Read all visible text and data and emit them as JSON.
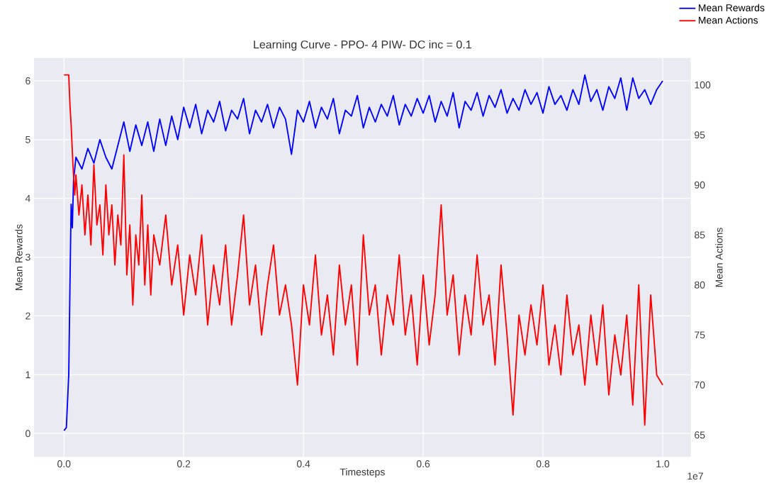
{
  "chart_data": {
    "type": "line",
    "title": "Learning Curve - PPO- 4 PIW- DC inc = 0.1",
    "xlabel": "Timesteps",
    "ylabel": "Mean Rewards",
    "y2label": "Mean Actions",
    "annotations": [
      "1e7"
    ],
    "xlim": [
      -0.05,
      1.047
    ],
    "ylim": [
      -0.4,
      6.39
    ],
    "y2lim": [
      62.8,
      102.7
    ],
    "xticks": [
      {
        "value": 0,
        "label": "0.0"
      },
      {
        "value": 0.2,
        "label": "0.2"
      },
      {
        "value": 0.4,
        "label": "0.4"
      },
      {
        "value": 0.6,
        "label": "0.6"
      },
      {
        "value": 0.8,
        "label": "0.8"
      },
      {
        "value": 1,
        "label": "1.0"
      }
    ],
    "yticks": [
      0,
      1,
      2,
      3,
      4,
      5,
      6
    ],
    "y2ticks": [
      65,
      70,
      75,
      80,
      85,
      90,
      95,
      100
    ],
    "grid": true,
    "legend": "top right",
    "series": [
      {
        "name": "Mean Rewards",
        "color": "#0000ff",
        "x": [
          0,
          0.004,
          0.008,
          0.01,
          0.012,
          0.014,
          0.016,
          0.02,
          0.03,
          0.04,
          0.05,
          0.06,
          0.07,
          0.08,
          0.09,
          0.1,
          0.11,
          0.12,
          0.13,
          0.14,
          0.15,
          0.16,
          0.17,
          0.18,
          0.19,
          0.2,
          0.21,
          0.22,
          0.23,
          0.24,
          0.25,
          0.26,
          0.27,
          0.28,
          0.29,
          0.3,
          0.31,
          0.32,
          0.33,
          0.34,
          0.35,
          0.36,
          0.37,
          0.38,
          0.39,
          0.4,
          0.41,
          0.42,
          0.43,
          0.44,
          0.45,
          0.46,
          0.47,
          0.48,
          0.49,
          0.5,
          0.51,
          0.52,
          0.53,
          0.54,
          0.55,
          0.56,
          0.57,
          0.58,
          0.59,
          0.6,
          0.61,
          0.62,
          0.63,
          0.64,
          0.65,
          0.66,
          0.67,
          0.68,
          0.69,
          0.7,
          0.71,
          0.72,
          0.73,
          0.74,
          0.75,
          0.76,
          0.77,
          0.78,
          0.79,
          0.8,
          0.81,
          0.82,
          0.83,
          0.84,
          0.85,
          0.86,
          0.87,
          0.88,
          0.89,
          0.9,
          0.91,
          0.92,
          0.93,
          0.94,
          0.95,
          0.96,
          0.97,
          0.98,
          0.99,
          1.0
        ],
        "values": [
          0.05,
          0.1,
          1.0,
          2.5,
          3.9,
          3.5,
          4.3,
          4.7,
          4.5,
          4.85,
          4.6,
          5.0,
          4.7,
          4.5,
          4.9,
          5.3,
          4.8,
          5.25,
          4.9,
          5.3,
          4.8,
          5.35,
          4.9,
          5.4,
          5.0,
          5.55,
          5.2,
          5.6,
          5.1,
          5.5,
          5.3,
          5.65,
          5.15,
          5.5,
          5.35,
          5.7,
          5.1,
          5.5,
          5.3,
          5.6,
          5.2,
          5.55,
          5.35,
          4.75,
          5.5,
          5.3,
          5.65,
          5.2,
          5.55,
          5.35,
          5.7,
          5.1,
          5.5,
          5.4,
          5.75,
          5.2,
          5.55,
          5.3,
          5.6,
          5.4,
          5.75,
          5.25,
          5.6,
          5.4,
          5.7,
          5.45,
          5.75,
          5.3,
          5.65,
          5.4,
          5.8,
          5.2,
          5.65,
          5.5,
          5.8,
          5.4,
          5.75,
          5.55,
          5.85,
          5.45,
          5.7,
          5.5,
          5.85,
          5.6,
          5.8,
          5.45,
          5.9,
          5.6,
          5.75,
          5.5,
          5.85,
          5.6,
          6.1,
          5.65,
          5.85,
          5.5,
          5.9,
          5.7,
          6.05,
          5.5,
          6.05,
          5.7,
          5.85,
          5.6,
          5.85,
          6.0
        ]
      },
      {
        "name": "Mean Actions",
        "color": "#ff0000",
        "axis": "y2",
        "x": [
          0,
          0.008,
          0.01,
          0.012,
          0.015,
          0.018,
          0.02,
          0.025,
          0.03,
          0.035,
          0.04,
          0.045,
          0.05,
          0.055,
          0.06,
          0.065,
          0.07,
          0.075,
          0.08,
          0.085,
          0.09,
          0.095,
          0.1,
          0.105,
          0.11,
          0.115,
          0.12,
          0.125,
          0.13,
          0.135,
          0.14,
          0.145,
          0.15,
          0.16,
          0.17,
          0.18,
          0.19,
          0.2,
          0.21,
          0.22,
          0.23,
          0.24,
          0.25,
          0.26,
          0.27,
          0.28,
          0.29,
          0.3,
          0.31,
          0.32,
          0.33,
          0.34,
          0.35,
          0.36,
          0.37,
          0.38,
          0.39,
          0.4,
          0.41,
          0.42,
          0.43,
          0.44,
          0.45,
          0.46,
          0.47,
          0.48,
          0.49,
          0.5,
          0.51,
          0.52,
          0.53,
          0.54,
          0.55,
          0.56,
          0.57,
          0.58,
          0.59,
          0.6,
          0.61,
          0.62,
          0.63,
          0.64,
          0.65,
          0.66,
          0.67,
          0.68,
          0.69,
          0.7,
          0.71,
          0.72,
          0.73,
          0.74,
          0.75,
          0.76,
          0.77,
          0.78,
          0.79,
          0.8,
          0.81,
          0.82,
          0.83,
          0.84,
          0.85,
          0.86,
          0.87,
          0.88,
          0.89,
          0.9,
          0.91,
          0.92,
          0.93,
          0.94,
          0.95,
          0.96,
          0.97,
          0.98,
          0.99,
          1.0
        ],
        "values": [
          101,
          101,
          98,
          96,
          92,
          89,
          91,
          87,
          90,
          85,
          89,
          84,
          92,
          86,
          88,
          83,
          90,
          85,
          88,
          82,
          87,
          84,
          93,
          81,
          86,
          78,
          85,
          82,
          89,
          80,
          86,
          79,
          85,
          82,
          87,
          80,
          84,
          77,
          83,
          79,
          85,
          76,
          82,
          78,
          84,
          76,
          81,
          87,
          78,
          82,
          75,
          80,
          84,
          77,
          80,
          76,
          70,
          80,
          76,
          83,
          75,
          79,
          73,
          82,
          76,
          80,
          72,
          85,
          77,
          80,
          73,
          79,
          76,
          83,
          75,
          79,
          72,
          81,
          74,
          79,
          88,
          77,
          81,
          73,
          79,
          75,
          83,
          76,
          79,
          72,
          82,
          75,
          67,
          77,
          73,
          78,
          74,
          80,
          72,
          76,
          71,
          79,
          73,
          76,
          70,
          77,
          72,
          78,
          69,
          75,
          71,
          77,
          68,
          80,
          66,
          79,
          71,
          70
        ]
      }
    ]
  }
}
